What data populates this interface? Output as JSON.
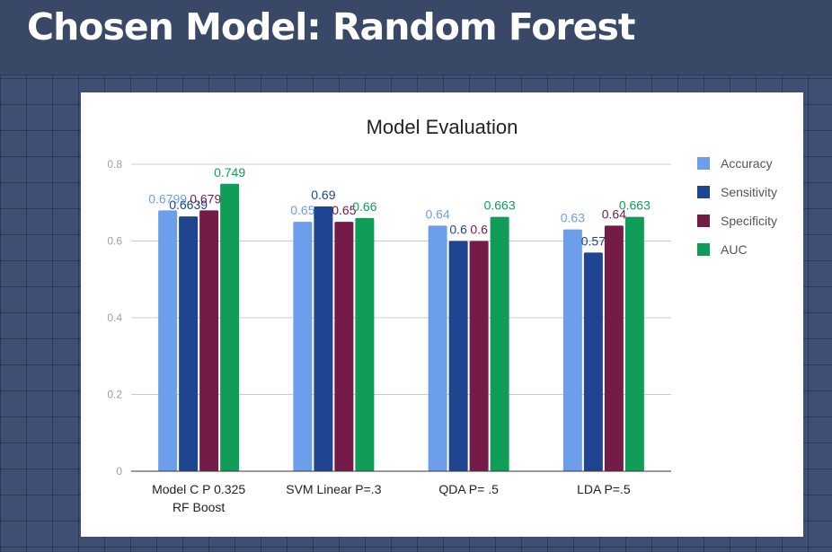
{
  "slide": {
    "title": "Chosen Model: Random Forest"
  },
  "chart_data": {
    "type": "bar",
    "title": "Model Evaluation",
    "xlabel": "",
    "ylabel": "",
    "ylim": [
      0,
      0.8
    ],
    "yticks": [
      "0",
      "0.2",
      "0.4",
      "0.6",
      "0.8"
    ],
    "grid": true,
    "legend_position": "right",
    "categories": [
      "Model C P 0.325\nRF Boost",
      "SVM Linear P=.3",
      "QDA P= .5",
      "LDA  P=.5"
    ],
    "series": [
      {
        "name": "Accuracy",
        "color": "#6d9eeb",
        "values": [
          0.6799,
          0.65,
          0.64,
          0.63
        ],
        "labels": [
          "0.6799",
          "0.65",
          "0.64",
          "0.63"
        ]
      },
      {
        "name": "Sensitivity",
        "color": "#1f4591",
        "values": [
          0.6639,
          0.69,
          0.6,
          0.57
        ],
        "labels": [
          "0.6639",
          "0.69",
          "0.6",
          "0.57"
        ]
      },
      {
        "name": "Specificity",
        "color": "#741b47",
        "values": [
          0.6799,
          0.65,
          0.6,
          0.64
        ],
        "labels": [
          "0.6799",
          "0.65",
          "0.6",
          "0.64"
        ]
      },
      {
        "name": "AUC",
        "color": "#0f9d58",
        "values": [
          0.749,
          0.66,
          0.663,
          0.663
        ],
        "labels": [
          "0.749",
          "0.66",
          "0.663",
          "0.663"
        ]
      }
    ]
  }
}
